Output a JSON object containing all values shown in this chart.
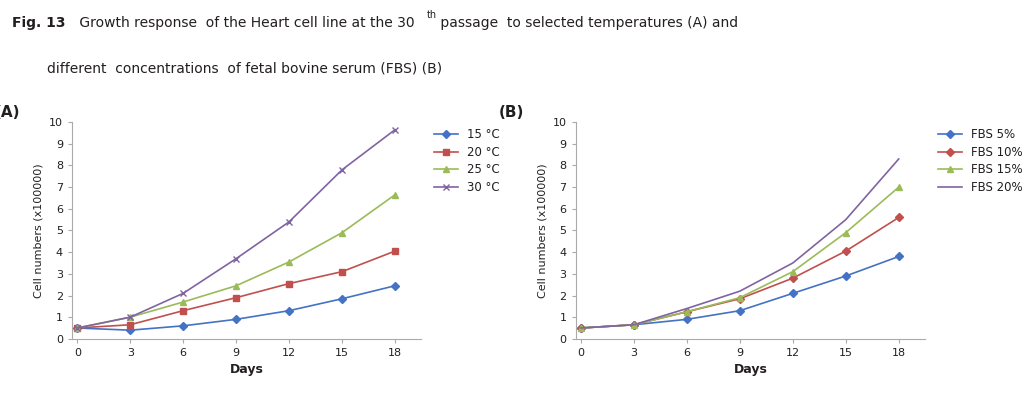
{
  "days": [
    0,
    3,
    6,
    9,
    12,
    15,
    18
  ],
  "chart_A": {
    "series": [
      {
        "label": "15 °C",
        "color": "#4472C4",
        "marker": "D",
        "values": [
          0.5,
          0.4,
          0.6,
          0.9,
          1.3,
          1.85,
          2.45
        ]
      },
      {
        "label": "20 °C",
        "color": "#C0504D",
        "marker": "s",
        "values": [
          0.5,
          0.65,
          1.3,
          1.9,
          2.55,
          3.1,
          4.05
        ]
      },
      {
        "label": "25 °C",
        "color": "#9BBB59",
        "marker": "^",
        "values": [
          0.5,
          1.0,
          1.7,
          2.45,
          3.55,
          4.9,
          6.65
        ]
      },
      {
        "label": "30 °C",
        "color": "#8064A2",
        "marker": "x",
        "values": [
          0.5,
          1.0,
          2.1,
          3.7,
          5.4,
          7.8,
          9.65
        ]
      }
    ],
    "ylabel": "Cell numbers (x100000)",
    "xlabel": "Days",
    "ylim": [
      0,
      10
    ],
    "yticks": [
      0,
      1,
      2,
      3,
      4,
      5,
      6,
      7,
      8,
      9,
      10
    ],
    "label": "(A)"
  },
  "chart_B": {
    "series": [
      {
        "label": "FBS 5%",
        "color": "#4472C4",
        "marker": "D",
        "values": [
          0.5,
          0.65,
          0.9,
          1.3,
          2.1,
          2.9,
          3.8
        ]
      },
      {
        "label": "FBS 10%",
        "color": "#C0504D",
        "marker": "D",
        "values": [
          0.5,
          0.65,
          1.25,
          1.85,
          2.8,
          4.05,
          5.6
        ]
      },
      {
        "label": "FBS 15%",
        "color": "#9BBB59",
        "marker": "^",
        "values": [
          0.5,
          0.65,
          1.25,
          1.9,
          3.1,
          4.9,
          7.0
        ]
      },
      {
        "label": "FBS 20%",
        "color": "#8064A2",
        "marker": "none",
        "values": [
          0.5,
          0.65,
          1.4,
          2.2,
          3.5,
          5.5,
          8.3
        ]
      }
    ],
    "ylabel": "Cell numbers (x100000)",
    "xlabel": "Days",
    "ylim": [
      0,
      10
    ],
    "yticks": [
      0,
      1,
      2,
      3,
      4,
      5,
      6,
      7,
      8,
      9,
      10
    ],
    "label": "(B)"
  },
  "caption_bold": "Fig. 13",
  "caption_rest": " Growth response  of the Heart cell line at the 30",
  "caption_sup": "th",
  "caption_end_line1": " passage  to selected temperatures (A) and",
  "caption_line2": "        different  concentrations  of fetal bovine serum (FBS) (B)",
  "background_color": "#ffffff",
  "text_color": "#231F20"
}
